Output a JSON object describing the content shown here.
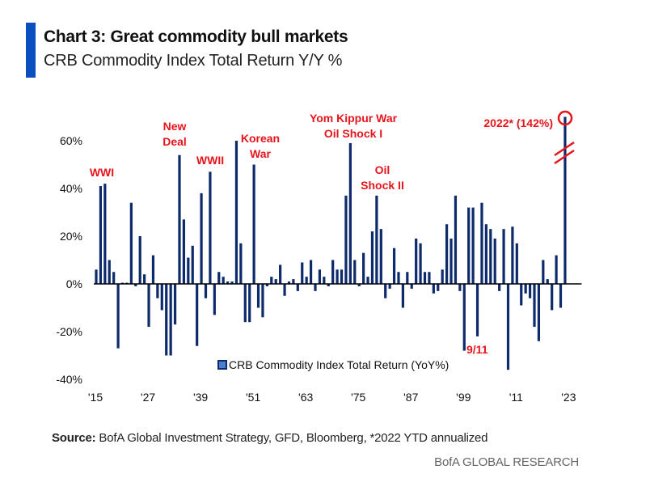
{
  "header": {
    "title": "Chart 3: Great commodity bull markets",
    "subtitle": "CRB Commodity Index Total Return Y/Y %"
  },
  "footer": {
    "source_label": "Source:",
    "source_text": "BofA Global Investment Strategy, GFD, Bloomberg, *2022 YTD annualized",
    "brand": "BofA GLOBAL RESEARCH"
  },
  "colors": {
    "accent": "#0b4ec0",
    "bar": "#0d2a6b",
    "annotation": "#e8141c"
  },
  "chart_data": {
    "type": "bar",
    "title": "Chart 3: Great commodity bull markets",
    "subtitle": "CRB Commodity Index Total Return Y/Y %",
    "xlabel": "",
    "ylabel": "",
    "ylim": [
      -40,
      70
    ],
    "y_ticks": [
      -40,
      -20,
      0,
      20,
      40,
      60
    ],
    "y_tick_labels": [
      "-40%",
      "-20%",
      "0%",
      "20%",
      "40%",
      "60%"
    ],
    "x_tick_labels": [
      "'15",
      "'27",
      "'39",
      "'51",
      "'63",
      "'75",
      "'87",
      "'99",
      "'11",
      "'23"
    ],
    "x_tick_years": [
      1915,
      1927,
      1939,
      1951,
      1963,
      1975,
      1987,
      1999,
      2011,
      2023
    ],
    "grid": false,
    "legend": {
      "label": "CRB Commodity Index Total Return (YoY%)",
      "placement": "bottom-center"
    },
    "series": [
      {
        "name": "CRB Commodity Index Total Return (YoY%)",
        "start_year": 1915,
        "values": [
          6,
          41,
          42,
          10,
          5,
          -27,
          0.5,
          0.5,
          34,
          -1,
          20,
          4,
          -18,
          12,
          -6,
          -11,
          -30,
          -30,
          -17,
          54,
          27,
          11,
          16,
          -26,
          38,
          -6,
          47,
          -13,
          5,
          3,
          1,
          1,
          60,
          17,
          -16,
          -16,
          50,
          -10,
          -14,
          -1,
          3,
          2,
          8,
          -5,
          1,
          2,
          -3,
          9,
          3,
          10,
          -3,
          6,
          3,
          -1,
          10,
          6,
          6,
          37,
          59,
          10,
          -1,
          13,
          3,
          22,
          37,
          23,
          -6,
          -2,
          15,
          5,
          -10,
          5,
          -2,
          19,
          17,
          5,
          5,
          -4,
          -3,
          6,
          25,
          19,
          37,
          -3,
          -28,
          32,
          32,
          -22,
          34,
          25,
          23,
          19,
          -3,
          23,
          -36,
          24,
          17,
          -9,
          -4,
          -6,
          -18,
          -24,
          10,
          2,
          -11,
          12,
          -10,
          142
        ]
      }
    ],
    "broken_axis_value": {
      "year": 2022,
      "value": 142,
      "display_cap": 70
    },
    "annotations": [
      {
        "text": "WWI",
        "year": 1917
      },
      {
        "text": "New Deal",
        "year": 1933
      },
      {
        "text": "WWII",
        "year": 1941
      },
      {
        "text": "Korean War",
        "year": 1950
      },
      {
        "text": "Yom Kippur War Oil Shock I",
        "year": 1973
      },
      {
        "text": "Oil Shock II",
        "year": 1979
      },
      {
        "text": "9/11",
        "year": 2001
      },
      {
        "text": "2022* (142%)",
        "year": 2022
      }
    ]
  }
}
